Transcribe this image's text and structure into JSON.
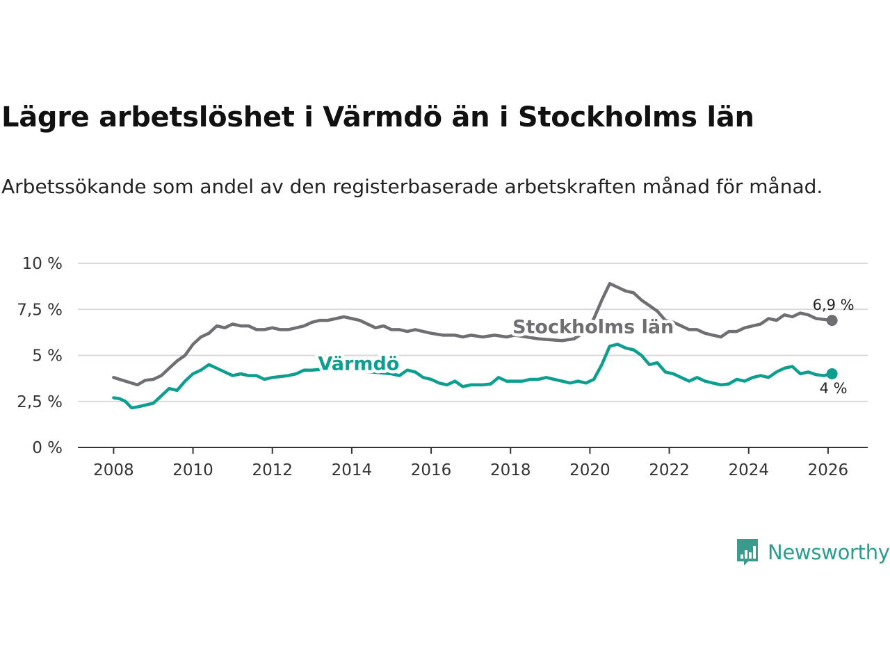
{
  "title": "Lägre arbetslöshet i Värmdö än i Stockholms län",
  "subtitle": "Arbetssökande som andel av den registerbaserade arbetskraften månad för månad.",
  "logo": {
    "text": "Newsworthy",
    "icon": "bar-chart-speech-bubble-icon",
    "color": "#3a9a8c"
  },
  "colors": {
    "stockholm": "#6e6e73",
    "varmdo": "#0d9e8f",
    "grid": "#d9d9d9",
    "axis": "#333333"
  },
  "chart_data": {
    "type": "line",
    "title": "Lägre arbetslöshet i Värmdö än i Stockholms län",
    "subtitle": "Arbetssökande som andel av den registerbaserade arbetskraften månad för månad.",
    "xlabel": "",
    "ylabel": "",
    "xlim": [
      2007.1,
      2027.0
    ],
    "ylim": [
      0,
      10
    ],
    "grid": true,
    "y_ticks": [
      {
        "value": 0,
        "label": "0 %"
      },
      {
        "value": 2.5,
        "label": "2,5 %"
      },
      {
        "value": 5,
        "label": "5 %"
      },
      {
        "value": 7.5,
        "label": "7,5 %"
      },
      {
        "value": 10,
        "label": "10 %"
      }
    ],
    "x_ticks": [
      {
        "value": 2008,
        "label": "2008"
      },
      {
        "value": 2010,
        "label": "2010"
      },
      {
        "value": 2012,
        "label": "2012"
      },
      {
        "value": 2014,
        "label": "2014"
      },
      {
        "value": 2016,
        "label": "2016"
      },
      {
        "value": 2018,
        "label": "2018"
      },
      {
        "value": 2020,
        "label": "2020"
      },
      {
        "value": 2022,
        "label": "2022"
      },
      {
        "value": 2024,
        "label": "2024"
      },
      {
        "value": 2026,
        "label": "2026"
      }
    ],
    "series": [
      {
        "name": "Stockholms län",
        "label": "Stockholms län",
        "color": "#6e6e73",
        "end_label": "6,9 %",
        "points": [
          [
            2008.0,
            3.8
          ],
          [
            2008.3,
            3.6
          ],
          [
            2008.6,
            3.4
          ],
          [
            2008.8,
            3.65
          ],
          [
            2009.0,
            3.7
          ],
          [
            2009.2,
            3.9
          ],
          [
            2009.4,
            4.3
          ],
          [
            2009.6,
            4.7
          ],
          [
            2009.8,
            5.0
          ],
          [
            2010.0,
            5.6
          ],
          [
            2010.2,
            6.0
          ],
          [
            2010.4,
            6.2
          ],
          [
            2010.6,
            6.6
          ],
          [
            2010.8,
            6.5
          ],
          [
            2011.0,
            6.7
          ],
          [
            2011.2,
            6.6
          ],
          [
            2011.4,
            6.6
          ],
          [
            2011.6,
            6.4
          ],
          [
            2011.8,
            6.4
          ],
          [
            2012.0,
            6.5
          ],
          [
            2012.2,
            6.4
          ],
          [
            2012.4,
            6.4
          ],
          [
            2012.6,
            6.5
          ],
          [
            2012.8,
            6.6
          ],
          [
            2013.0,
            6.8
          ],
          [
            2013.2,
            6.9
          ],
          [
            2013.4,
            6.9
          ],
          [
            2013.6,
            7.0
          ],
          [
            2013.8,
            7.1
          ],
          [
            2014.0,
            7.0
          ],
          [
            2014.2,
            6.9
          ],
          [
            2014.4,
            6.7
          ],
          [
            2014.6,
            6.5
          ],
          [
            2014.8,
            6.6
          ],
          [
            2015.0,
            6.4
          ],
          [
            2015.2,
            6.4
          ],
          [
            2015.4,
            6.3
          ],
          [
            2015.6,
            6.4
          ],
          [
            2015.8,
            6.3
          ],
          [
            2016.0,
            6.2
          ],
          [
            2016.3,
            6.1
          ],
          [
            2016.6,
            6.1
          ],
          [
            2016.8,
            6.0
          ],
          [
            2017.0,
            6.1
          ],
          [
            2017.3,
            6.0
          ],
          [
            2017.6,
            6.1
          ],
          [
            2017.9,
            6.0
          ],
          [
            2018.1,
            6.1
          ],
          [
            2018.4,
            6.0
          ],
          [
            2018.7,
            5.9
          ],
          [
            2019.0,
            5.85
          ],
          [
            2019.3,
            5.8
          ],
          [
            2019.6,
            5.9
          ],
          [
            2019.9,
            6.3
          ],
          [
            2020.1,
            7.0
          ],
          [
            2020.3,
            8.0
          ],
          [
            2020.5,
            8.9
          ],
          [
            2020.7,
            8.7
          ],
          [
            2020.9,
            8.5
          ],
          [
            2021.1,
            8.4
          ],
          [
            2021.3,
            8.0
          ],
          [
            2021.5,
            7.7
          ],
          [
            2021.7,
            7.4
          ],
          [
            2021.9,
            6.9
          ],
          [
            2022.1,
            6.8
          ],
          [
            2022.3,
            6.6
          ],
          [
            2022.5,
            6.4
          ],
          [
            2022.7,
            6.4
          ],
          [
            2022.9,
            6.2
          ],
          [
            2023.1,
            6.1
          ],
          [
            2023.3,
            6.0
          ],
          [
            2023.5,
            6.3
          ],
          [
            2023.7,
            6.3
          ],
          [
            2023.9,
            6.5
          ],
          [
            2024.1,
            6.6
          ],
          [
            2024.3,
            6.7
          ],
          [
            2024.5,
            7.0
          ],
          [
            2024.7,
            6.9
          ],
          [
            2024.9,
            7.2
          ],
          [
            2025.1,
            7.1
          ],
          [
            2025.3,
            7.3
          ],
          [
            2025.5,
            7.2
          ],
          [
            2025.7,
            7.0
          ],
          [
            2025.9,
            6.95
          ],
          [
            2026.1,
            6.9
          ]
        ]
      },
      {
        "name": "Värmdö",
        "label": "Värmdö",
        "color": "#0d9e8f",
        "end_label": "4 %",
        "points": [
          [
            2008.0,
            2.7
          ],
          [
            2008.15,
            2.65
          ],
          [
            2008.3,
            2.5
          ],
          [
            2008.45,
            2.15
          ],
          [
            2008.6,
            2.2
          ],
          [
            2008.8,
            2.3
          ],
          [
            2009.0,
            2.4
          ],
          [
            2009.2,
            2.8
          ],
          [
            2009.4,
            3.2
          ],
          [
            2009.6,
            3.1
          ],
          [
            2009.8,
            3.6
          ],
          [
            2010.0,
            4.0
          ],
          [
            2010.2,
            4.2
          ],
          [
            2010.4,
            4.5
          ],
          [
            2010.6,
            4.3
          ],
          [
            2010.8,
            4.1
          ],
          [
            2011.0,
            3.9
          ],
          [
            2011.2,
            4.0
          ],
          [
            2011.4,
            3.9
          ],
          [
            2011.6,
            3.9
          ],
          [
            2011.8,
            3.7
          ],
          [
            2012.0,
            3.8
          ],
          [
            2012.2,
            3.85
          ],
          [
            2012.4,
            3.9
          ],
          [
            2012.6,
            4.0
          ],
          [
            2012.8,
            4.2
          ],
          [
            2013.0,
            4.2
          ],
          [
            2013.5,
            4.3
          ],
          [
            2014.0,
            4.2
          ],
          [
            2014.5,
            4.1
          ],
          [
            2015.0,
            4.0
          ],
          [
            2015.2,
            3.9
          ],
          [
            2015.4,
            4.2
          ],
          [
            2015.6,
            4.1
          ],
          [
            2015.8,
            3.8
          ],
          [
            2016.0,
            3.7
          ],
          [
            2016.2,
            3.5
          ],
          [
            2016.4,
            3.4
          ],
          [
            2016.6,
            3.6
          ],
          [
            2016.8,
            3.3
          ],
          [
            2017.0,
            3.4
          ],
          [
            2017.3,
            3.4
          ],
          [
            2017.5,
            3.45
          ],
          [
            2017.7,
            3.8
          ],
          [
            2017.9,
            3.6
          ],
          [
            2018.1,
            3.6
          ],
          [
            2018.3,
            3.6
          ],
          [
            2018.5,
            3.7
          ],
          [
            2018.7,
            3.7
          ],
          [
            2018.9,
            3.8
          ],
          [
            2019.1,
            3.7
          ],
          [
            2019.3,
            3.6
          ],
          [
            2019.5,
            3.5
          ],
          [
            2019.7,
            3.6
          ],
          [
            2019.9,
            3.5
          ],
          [
            2020.1,
            3.7
          ],
          [
            2020.3,
            4.5
          ],
          [
            2020.5,
            5.5
          ],
          [
            2020.7,
            5.6
          ],
          [
            2020.9,
            5.4
          ],
          [
            2021.1,
            5.3
          ],
          [
            2021.3,
            5.0
          ],
          [
            2021.5,
            4.5
          ],
          [
            2021.7,
            4.6
          ],
          [
            2021.9,
            4.1
          ],
          [
            2022.1,
            4.0
          ],
          [
            2022.3,
            3.8
          ],
          [
            2022.5,
            3.6
          ],
          [
            2022.7,
            3.8
          ],
          [
            2022.9,
            3.6
          ],
          [
            2023.1,
            3.5
          ],
          [
            2023.3,
            3.4
          ],
          [
            2023.5,
            3.45
          ],
          [
            2023.7,
            3.7
          ],
          [
            2023.9,
            3.6
          ],
          [
            2024.1,
            3.8
          ],
          [
            2024.3,
            3.9
          ],
          [
            2024.5,
            3.8
          ],
          [
            2024.7,
            4.1
          ],
          [
            2024.9,
            4.3
          ],
          [
            2025.1,
            4.4
          ],
          [
            2025.3,
            4.0
          ],
          [
            2025.5,
            4.1
          ],
          [
            2025.7,
            3.95
          ],
          [
            2025.9,
            3.9
          ],
          [
            2026.1,
            4.0
          ]
        ]
      }
    ],
    "series_labels": [
      {
        "series": "Stockholms län",
        "text": "Stockholms län",
        "x": 2018.05,
        "y": 6.2
      },
      {
        "series": "Värmdö",
        "text": "Värmdö",
        "x": 2013.15,
        "y": 4.2
      }
    ]
  }
}
